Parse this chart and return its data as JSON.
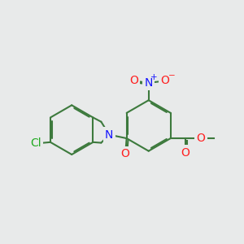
{
  "bg": "#e8eaea",
  "bond_color": "#3d7a3d",
  "bond_lw": 1.5,
  "atom_colors": {
    "N": "#1414ff",
    "O": "#ff2020",
    "Cl": "#22aa22",
    "C": "#3d7a3d"
  },
  "afs": 9.5,
  "dbo": 0.055
}
